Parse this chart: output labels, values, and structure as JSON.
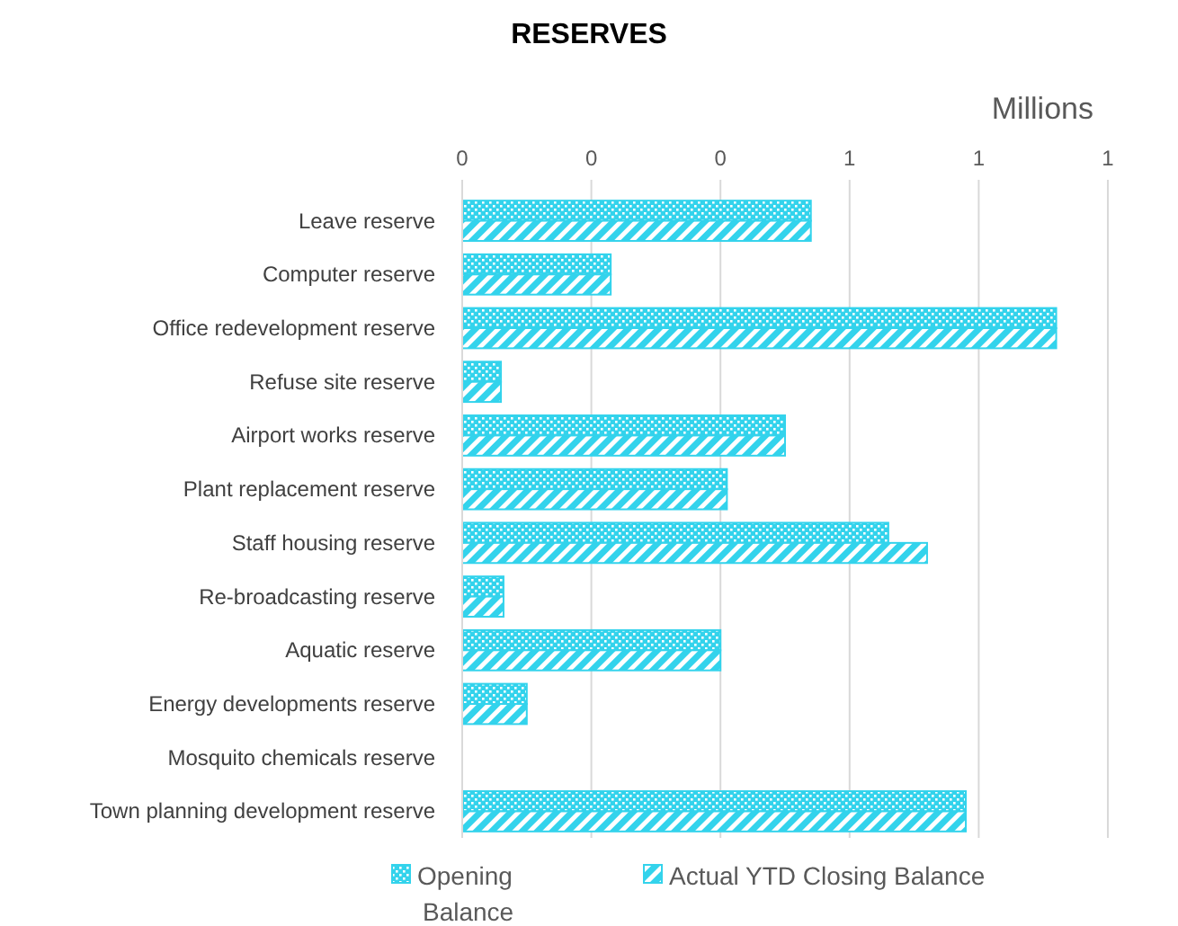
{
  "chart_data": {
    "type": "bar",
    "orientation": "horizontal",
    "title": "RESERVES",
    "xlabel": "Millions",
    "categories": [
      "Leave reserve",
      "Computer reserve",
      "Office redevelopment reserve",
      "Refuse site reserve",
      "Airport works reserve",
      "Plant replacement reserve",
      "Staff housing reserve",
      "Re-broadcasting reserve",
      "Aquatic reserve",
      "Energy developments reserve",
      "Mosquito chemicals reserve",
      "Town planning development reserve"
    ],
    "series": [
      {
        "name": "Opening Balance",
        "color": "#33d3ec",
        "values": [
          0.54,
          0.23,
          0.92,
          0.06,
          0.5,
          0.41,
          0.66,
          0.064,
          0.4,
          0.1,
          0,
          0.78
        ]
      },
      {
        "name": "Actual YTD Closing Balance",
        "color": "#33d3ec",
        "values": [
          0.54,
          0.23,
          0.92,
          0.06,
          0.5,
          0.41,
          0.72,
          0.064,
          0.4,
          0.1,
          0,
          0.78
        ]
      }
    ],
    "xlim": [
      0,
      1.0
    ],
    "xticks": [
      {
        "value": 0,
        "label": "0"
      },
      {
        "value": 0.2,
        "label": "0"
      },
      {
        "value": 0.4,
        "label": "0"
      },
      {
        "value": 0.6,
        "label": "1"
      },
      {
        "value": 0.8,
        "label": "1"
      },
      {
        "value": 1.0,
        "label": "1"
      }
    ],
    "grid": "x",
    "legend": "bottom"
  }
}
